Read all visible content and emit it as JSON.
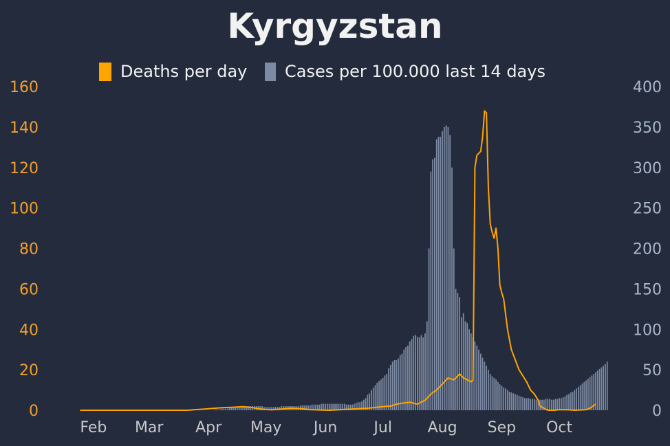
{
  "chart_data": {
    "type": "bar+line",
    "title": "Kyrgyzstan",
    "legend": {
      "placement": "top-center"
    },
    "grid": false,
    "colors": {
      "background": "#232b3c",
      "deaths": "#ffa500",
      "cases": "#7d8aa3",
      "left_ticks": "#f0a030",
      "right_ticks": "#aab7cc",
      "x_ticks": "#c8c8c8",
      "title": "#f2f2f2"
    },
    "x_ticks": [
      "Feb",
      "Mar",
      "Apr",
      "May",
      "Jun",
      "Jul",
      "Aug",
      "Sep",
      "Oct"
    ],
    "x_tick_days": [
      7,
      36,
      67,
      97,
      128,
      158,
      189,
      220,
      250
    ],
    "x_range_days": [
      -3,
      269
    ],
    "y_left": {
      "label": "",
      "lim": [
        0,
        160
      ],
      "ticks": [
        0,
        20,
        40,
        60,
        80,
        100,
        120,
        140,
        160
      ]
    },
    "y_right": {
      "label": "",
      "lim": [
        0,
        400
      ],
      "ticks": [
        0,
        50,
        100,
        150,
        200,
        250,
        300,
        350,
        400
      ]
    },
    "series": [
      {
        "name": "Cases per 100.000 last 14 days",
        "kind": "bar",
        "axis": "right",
        "start_day": 61,
        "values": [
          0,
          0,
          0,
          0,
          0,
          0,
          0,
          0,
          0,
          1,
          1,
          1,
          1,
          2,
          2,
          2,
          2,
          3,
          3,
          3,
          3,
          4,
          4,
          4,
          4,
          4,
          5,
          5,
          5,
          5,
          5,
          5,
          5,
          5,
          5,
          4,
          4,
          4,
          4,
          4,
          4,
          4,
          4,
          4,
          5,
          5,
          5,
          5,
          5,
          5,
          5,
          5,
          5,
          5,
          6,
          6,
          6,
          6,
          6,
          6,
          7,
          7,
          7,
          7,
          7,
          8,
          8,
          8,
          8,
          8,
          8,
          8,
          8,
          8,
          8,
          8,
          8,
          8,
          7,
          7,
          7,
          7,
          8,
          9,
          10,
          10,
          11,
          13,
          15,
          19,
          21,
          25,
          28,
          31,
          34,
          36,
          38,
          40,
          43,
          45,
          52,
          56,
          60,
          62,
          62,
          64,
          68,
          70,
          75,
          78,
          80,
          85,
          88,
          92,
          93,
          91,
          90,
          93,
          90,
          95,
          110,
          200,
          295,
          310,
          312,
          335,
          338,
          338,
          345,
          350,
          352,
          350,
          340,
          300,
          200,
          150,
          145,
          140,
          115,
          120,
          110,
          108,
          100,
          95,
          90,
          85,
          80,
          75,
          70,
          65,
          60,
          55,
          50,
          45,
          42,
          40,
          38,
          35,
          32,
          30,
          28,
          27,
          25,
          23,
          22,
          21,
          20,
          19,
          18,
          17,
          16,
          15,
          15,
          15,
          14,
          14,
          14,
          13,
          13,
          13,
          13,
          13,
          14,
          14,
          14,
          13,
          13,
          14,
          14,
          15,
          15,
          16,
          17,
          19,
          20,
          22,
          23,
          25,
          27,
          29,
          31,
          33,
          35,
          37,
          39,
          41,
          43,
          45,
          47,
          49,
          51,
          53,
          55,
          57,
          60
        ]
      },
      {
        "name": "Deaths per day",
        "kind": "line",
        "axis": "left",
        "start_day": 0,
        "points": [
          [
            0,
            0
          ],
          [
            56,
            0
          ],
          [
            60,
            0.3
          ],
          [
            65,
            0.6
          ],
          [
            70,
            1
          ],
          [
            75,
            1.3
          ],
          [
            80,
            1.5
          ],
          [
            85,
            1.8
          ],
          [
            90,
            1.3
          ],
          [
            95,
            0.5
          ],
          [
            100,
            0.2
          ],
          [
            105,
            0.6
          ],
          [
            110,
            1
          ],
          [
            115,
            0.8
          ],
          [
            120,
            0.3
          ],
          [
            130,
            0
          ],
          [
            140,
            0.5
          ],
          [
            150,
            1
          ],
          [
            155,
            1.5
          ],
          [
            160,
            2
          ],
          [
            162,
            2
          ],
          [
            165,
            3
          ],
          [
            168,
            3.5
          ],
          [
            172,
            4
          ],
          [
            176,
            3
          ],
          [
            180,
            5
          ],
          [
            183,
            8
          ],
          [
            186,
            10
          ],
          [
            188,
            12
          ],
          [
            190,
            14
          ],
          [
            192,
            16
          ],
          [
            195,
            15
          ],
          [
            198,
            18
          ],
          [
            200,
            16
          ],
          [
            202,
            15
          ],
          [
            204,
            14
          ],
          [
            205,
            15
          ],
          [
            206,
            120
          ],
          [
            207,
            126
          ],
          [
            209,
            128
          ],
          [
            210,
            135
          ],
          [
            211,
            148
          ],
          [
            212,
            147
          ],
          [
            213,
            110
          ],
          [
            214,
            92
          ],
          [
            215,
            88
          ],
          [
            216,
            85
          ],
          [
            217,
            90
          ],
          [
            218,
            80
          ],
          [
            219,
            62
          ],
          [
            220,
            58
          ],
          [
            221,
            55
          ],
          [
            223,
            40
          ],
          [
            225,
            30
          ],
          [
            227,
            25
          ],
          [
            229,
            20
          ],
          [
            231,
            17
          ],
          [
            233,
            14
          ],
          [
            235,
            10
          ],
          [
            237,
            8
          ],
          [
            239,
            5
          ],
          [
            240,
            2
          ],
          [
            242,
            1
          ],
          [
            244,
            0
          ],
          [
            248,
            0
          ],
          [
            249,
            0.3
          ],
          [
            255,
            0.2
          ],
          [
            258,
            0
          ],
          [
            264,
            0.3
          ],
          [
            266,
            1
          ],
          [
            269,
            3
          ]
        ]
      }
    ]
  }
}
